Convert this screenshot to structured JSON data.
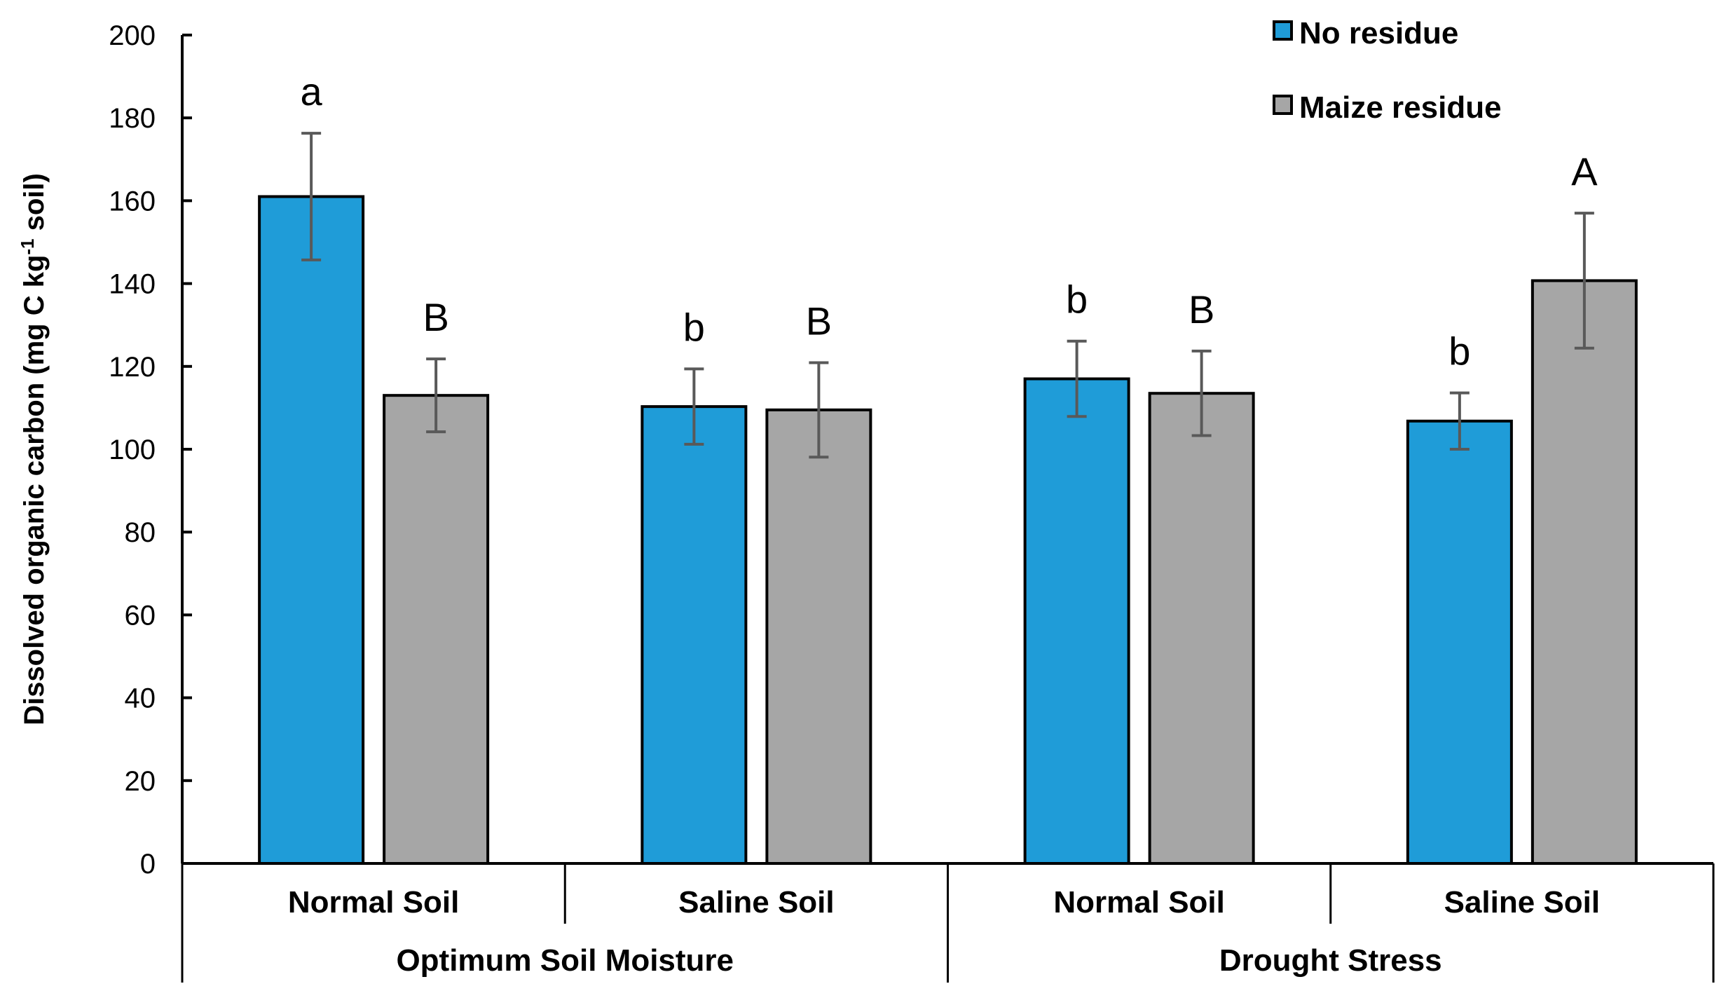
{
  "chart_data": {
    "type": "bar",
    "ylabel": "Dissolved organic carbon (mg C kg",
    "ylabel_sup": "-1",
    "ylabel_end": " soil)",
    "ylim": [
      0,
      200
    ],
    "yticks": [
      0,
      20,
      40,
      60,
      80,
      100,
      120,
      140,
      160,
      180,
      200
    ],
    "grid": false,
    "legend_placement": "top-right",
    "categories": [
      "Normal Soil",
      "Saline Soil",
      "Normal Soil",
      "Saline Soil"
    ],
    "groups": [
      {
        "label": "Optimum Soil Moisture",
        "categories": [
          0,
          1
        ]
      },
      {
        "label": "Drought Stress",
        "categories": [
          2,
          3
        ]
      }
    ],
    "series": [
      {
        "name": "No residue",
        "color": "#1f9cd8",
        "values": [
          161,
          110.3,
          117,
          106.8
        ],
        "error": [
          15.3,
          9.1,
          9.1,
          6.8
        ],
        "letters": [
          "a",
          "b",
          "b",
          "b"
        ]
      },
      {
        "name": "Maize residue",
        "color": "#a6a6a6",
        "values": [
          113,
          109.5,
          113.5,
          140.7
        ],
        "error": [
          8.8,
          11.4,
          10.2,
          16.3
        ],
        "letters": [
          "B",
          "B",
          "B",
          "A"
        ]
      }
    ]
  }
}
